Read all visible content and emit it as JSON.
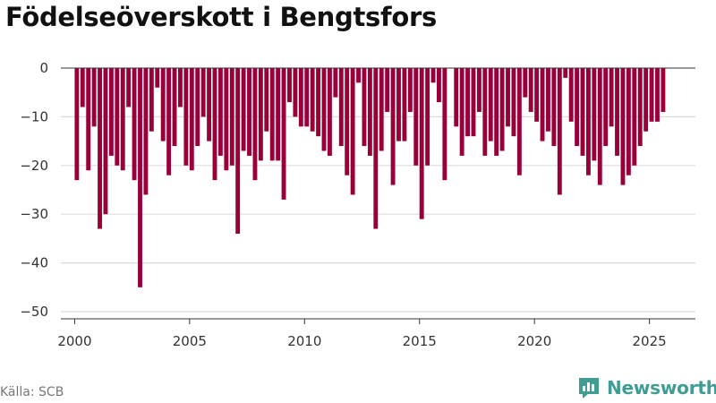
{
  "chart_data": {
    "type": "bar",
    "title": "Födelseöverskott i Bengtsfors",
    "xlabel": "",
    "ylabel": "",
    "ylim": [
      -50,
      0
    ],
    "xlim": [
      1999.4,
      2027.0
    ],
    "yticks": [
      0,
      -10,
      -20,
      -30,
      -40,
      -50
    ],
    "xticks": [
      2000,
      2005,
      2010,
      2015,
      2020,
      2025
    ],
    "grid": true,
    "colors": {
      "bar": "#99003a",
      "grid": "#dddddd",
      "zero_line": "#333333"
    },
    "start_year": 2000,
    "periods_per_year": 4,
    "values": [
      -23,
      -8,
      -21,
      -12,
      -33,
      -30,
      -18,
      -20,
      -21,
      -8,
      -23,
      -45,
      -26,
      -13,
      -4,
      -15,
      -22,
      -16,
      -8,
      -20,
      -21,
      -16,
      -10,
      -15,
      -23,
      -18,
      -21,
      -20,
      -34,
      -17,
      -18,
      -23,
      -19,
      -13,
      -19,
      -19,
      -27,
      -7,
      -10,
      -12,
      -12,
      -13,
      -14,
      -17,
      -18,
      -6,
      -16,
      -22,
      -26,
      -3,
      -16,
      -18,
      -33,
      -17,
      -9,
      -24,
      -15,
      -15,
      -9,
      -20,
      -31,
      -20,
      -3,
      -7,
      -23,
      0,
      -12,
      -18,
      -14,
      -14,
      -9,
      -18,
      -15,
      -18,
      -17,
      -12,
      -14,
      -22,
      -6,
      -9,
      -11,
      -15,
      -13,
      -16,
      -26,
      -2,
      -11,
      -16,
      -18,
      -22,
      -19,
      -24,
      -16,
      -12,
      -18,
      -24,
      -22,
      -20,
      -16,
      -13,
      -11,
      -11,
      -9
    ]
  },
  "source": "Källa: SCB",
  "brand": {
    "name": "Newsworthy",
    "icon": "newsworthy-logo-icon",
    "color": "#3f9d94"
  }
}
